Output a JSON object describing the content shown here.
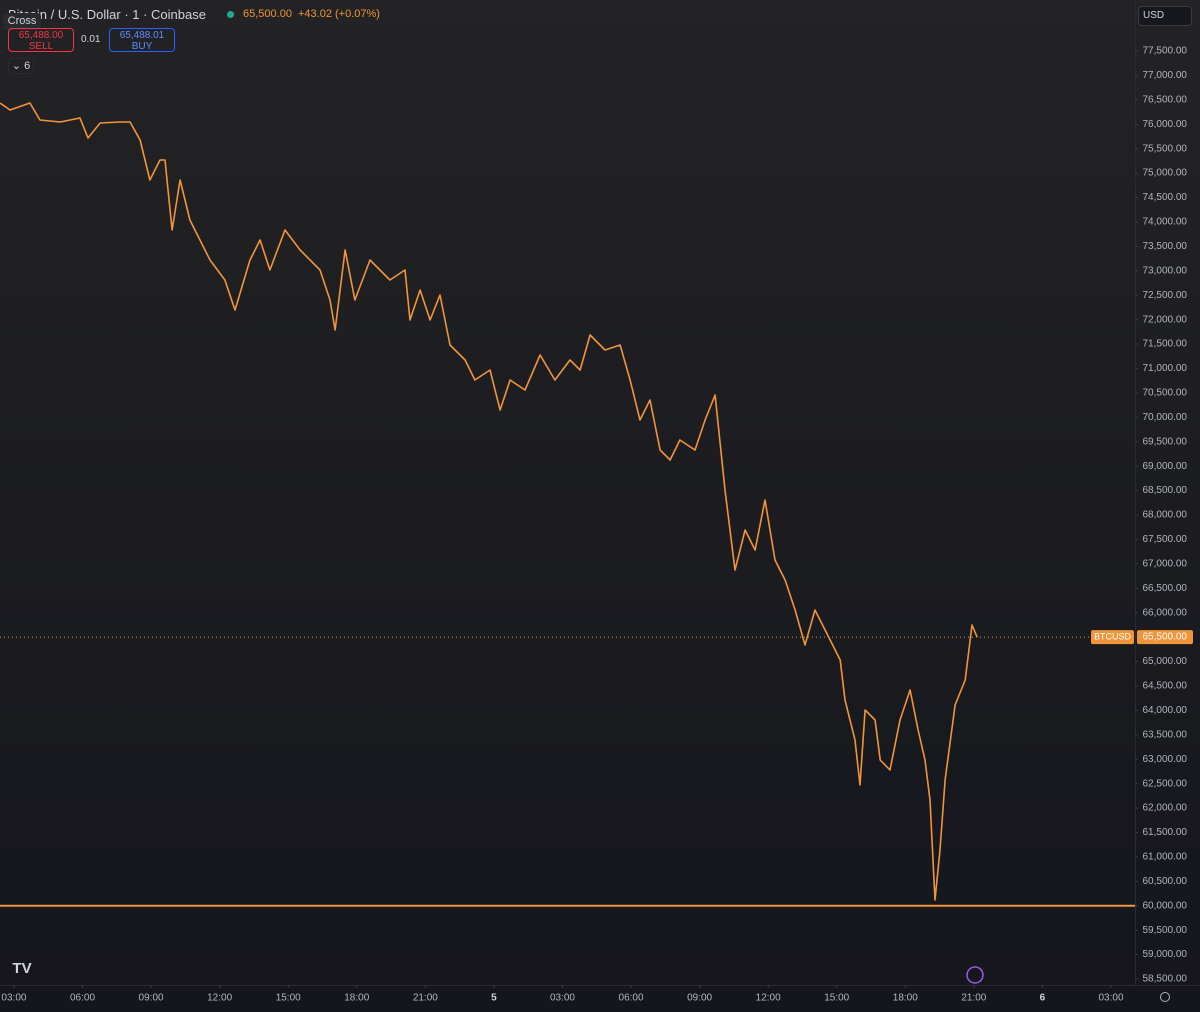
{
  "chart_data": {
    "type": "line",
    "title": "Bitcoin / U.S. Dollar · 1 · Coinbase",
    "header_price": "65,500.00",
    "header_change": "+43.02 (+0.07%)",
    "margin_mode": "Cross",
    "sell_price": "65,488.00",
    "sell_label": "SELL",
    "spread": "0.01",
    "buy_price": "65,488.01",
    "buy_label": "BUY",
    "indicators_count": "6",
    "currency": "USD",
    "x": [
      2.39,
      2.83,
      3.7,
      4.14,
      5.02,
      5.89,
      6.24,
      6.77,
      7.64,
      8.08,
      8.52,
      8.95,
      9.39,
      9.61,
      9.92,
      10.27,
      10.7,
      11.58,
      12.23,
      12.67,
      13.33,
      13.77,
      14.2,
      14.86,
      15.52,
      16.39,
      16.83,
      17.05,
      17.49,
      17.92,
      18.58,
      19.45,
      20.11,
      20.33,
      20.77,
      21.21,
      21.64,
      22.08,
      22.74,
      23.17,
      23.83,
      24.27,
      24.71,
      25.36,
      26.02,
      26.67,
      27.33,
      27.77,
      28.21,
      28.86,
      29.52,
      29.96,
      30.39,
      30.83,
      31.27,
      31.71,
      32.14,
      32.8,
      33.24,
      33.68,
      34.11,
      34.55,
      34.99,
      35.43,
      35.86,
      36.3,
      36.74,
      37.18,
      37.61,
      38.05,
      38.49,
      39.15,
      39.36,
      39.8,
      40.02,
      40.24,
      40.68,
      40.9,
      41.33,
      41.77,
      42.21,
      42.56,
      42.86,
      43.08,
      43.3,
      43.52,
      43.74,
      44.18,
      44.62,
      44.92,
      45.14
    ],
    "series": [
      {
        "name": "BTCUSD",
        "color": "#f0953a",
        "values": [
          76435,
          76292,
          76435,
          76087,
          76046,
          76128,
          75719,
          76026,
          76046,
          76046,
          75678,
          74859,
          75268,
          75268,
          73835,
          74859,
          74040,
          73221,
          72811,
          72197,
          73221,
          73630,
          73016,
          73835,
          73425,
          73016,
          72402,
          71787,
          73425,
          72402,
          73221,
          72811,
          73016,
          71992,
          72606,
          71992,
          72504,
          71480,
          71173,
          70764,
          70968,
          70149,
          70764,
          70559,
          71276,
          70764,
          71173,
          70968,
          71685,
          71378,
          71480,
          70764,
          69945,
          70354,
          69330,
          69126,
          69535,
          69330,
          69945,
          70457,
          68511,
          66873,
          67692,
          67283,
          68307,
          67078,
          66669,
          66054,
          65338,
          66054,
          65645,
          65031,
          64212,
          63393,
          62471,
          64007,
          63802,
          62983,
          62778,
          63802,
          64416,
          63597,
          62983,
          62164,
          60117,
          61140,
          62574,
          64109,
          64621,
          65747,
          65500
        ]
      }
    ],
    "xlim": [
      2.39,
      52.05
    ],
    "ylim": [
      58377,
      78544
    ],
    "xticks": [
      {
        "value": 3,
        "label": "03:00"
      },
      {
        "value": 6,
        "label": "06:00"
      },
      {
        "value": 9,
        "label": "09:00"
      },
      {
        "value": 12,
        "label": "12:00"
      },
      {
        "value": 15,
        "label": "15:00"
      },
      {
        "value": 18,
        "label": "18:00"
      },
      {
        "value": 21,
        "label": "21:00"
      },
      {
        "value": 24,
        "label": "5"
      },
      {
        "value": 27,
        "label": "03:00"
      },
      {
        "value": 30,
        "label": "06:00"
      },
      {
        "value": 33,
        "label": "09:00"
      },
      {
        "value": 36,
        "label": "12:00"
      },
      {
        "value": 39,
        "label": "15:00"
      },
      {
        "value": 42,
        "label": "18:00"
      },
      {
        "value": 45,
        "label": "21:00"
      },
      {
        "value": 48,
        "label": "6"
      },
      {
        "value": 51,
        "label": "03:00"
      }
    ],
    "yticks": [
      {
        "value": 58500,
        "label": "58,500.00"
      },
      {
        "value": 59000,
        "label": "59,000.00"
      },
      {
        "value": 59500,
        "label": "59,500.00"
      },
      {
        "value": 60000,
        "label": "60,000.00"
      },
      {
        "value": 60500,
        "label": "60,500.00"
      },
      {
        "value": 61000,
        "label": "61,000.00"
      },
      {
        "value": 61500,
        "label": "61,500.00"
      },
      {
        "value": 62000,
        "label": "62,000.00"
      },
      {
        "value": 62500,
        "label": "62,500.00"
      },
      {
        "value": 63000,
        "label": "63,000.00"
      },
      {
        "value": 63500,
        "label": "63,500.00"
      },
      {
        "value": 64000,
        "label": "64,000.00"
      },
      {
        "value": 64500,
        "label": "64,500.00"
      },
      {
        "value": 65000,
        "label": "65,000.00"
      },
      {
        "value": 65500,
        "label": "65,500.00"
      },
      {
        "value": 66000,
        "label": "66,000.00"
      },
      {
        "value": 66500,
        "label": "66,500.00"
      },
      {
        "value": 67000,
        "label": "67,000.00"
      },
      {
        "value": 67500,
        "label": "67,500.00"
      },
      {
        "value": 68000,
        "label": "68,000.00"
      },
      {
        "value": 68500,
        "label": "68,500.00"
      },
      {
        "value": 69000,
        "label": "69,000.00"
      },
      {
        "value": 69500,
        "label": "69,500.00"
      },
      {
        "value": 70000,
        "label": "70,000.00"
      },
      {
        "value": 70500,
        "label": "70,500.00"
      },
      {
        "value": 71000,
        "label": "71,000.00"
      },
      {
        "value": 71500,
        "label": "71,500.00"
      },
      {
        "value": 72000,
        "label": "72,000.00"
      },
      {
        "value": 72500,
        "label": "72,500.00"
      },
      {
        "value": 73000,
        "label": "73,000.00"
      },
      {
        "value": 73500,
        "label": "73,500.00"
      },
      {
        "value": 74000,
        "label": "74,000.00"
      },
      {
        "value": 74500,
        "label": "74,500.00"
      },
      {
        "value": 75000,
        "label": "75,000.00"
      },
      {
        "value": 75500,
        "label": "75,500.00"
      },
      {
        "value": 76000,
        "label": "76,000.00"
      },
      {
        "value": 76500,
        "label": "76,500.00"
      },
      {
        "value": 77000,
        "label": "77,000.00"
      },
      {
        "value": 77500,
        "label": "77,500.00"
      }
    ],
    "hline": 60000,
    "hline_color": "#f0953a",
    "price_line": {
      "name": "BTCUSD",
      "value": 65500,
      "label": "65,500.00"
    },
    "grid": false
  }
}
